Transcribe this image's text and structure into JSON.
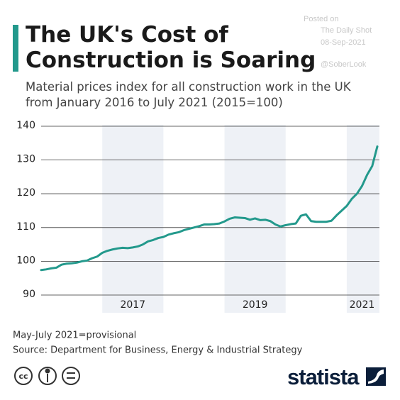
{
  "chart_data": {
    "type": "line",
    "title": "The UK's Cost of Construction is Soaring",
    "subtitle": "Material prices index for all construction work in the UK from January 2016 to July 2021 (2015=100)",
    "watermark": [
      "Posted on",
      "The Daily Shot",
      "08-Sep-2021",
      "@SoberLook"
    ],
    "categories": [
      null,
      null,
      null,
      null,
      null,
      null,
      null,
      null,
      null,
      null,
      null,
      null,
      null,
      null,
      null,
      null,
      null,
      null,
      "2017",
      null,
      null,
      null,
      null,
      null,
      null,
      null,
      null,
      null,
      null,
      null,
      null,
      null,
      null,
      null,
      null,
      null,
      null,
      null,
      null,
      null,
      null,
      null,
      "2019",
      null,
      null,
      null,
      null,
      null,
      null,
      null,
      null,
      null,
      null,
      null,
      null,
      null,
      null,
      null,
      null,
      null,
      null,
      null,
      null,
      "2021",
      null,
      null,
      null
    ],
    "series": [
      {
        "name": "Material prices index",
        "color": "#23998c",
        "values": [
          97.4,
          97.6,
          97.9,
          98.1,
          99.0,
          99.3,
          99.4,
          99.6,
          100.0,
          100.2,
          100.9,
          101.4,
          102.5,
          103.1,
          103.5,
          103.8,
          104.0,
          103.9,
          104.1,
          104.4,
          105.0,
          105.9,
          106.3,
          106.9,
          107.2,
          107.9,
          108.3,
          108.6,
          109.2,
          109.6,
          110.0,
          110.4,
          110.9,
          110.9,
          111.0,
          111.2,
          111.8,
          112.6,
          113.0,
          112.9,
          112.8,
          112.3,
          112.7,
          112.2,
          112.3,
          111.9,
          110.9,
          110.3,
          110.7,
          111.0,
          111.2,
          113.5,
          113.9,
          111.9,
          111.7,
          111.7,
          111.7,
          112.0,
          113.6,
          115.0,
          116.4,
          118.5,
          120.0,
          122.3,
          125.6,
          128.2,
          134.0
        ]
      }
    ],
    "ylim": [
      90,
      140
    ],
    "yticks": [
      90,
      100,
      110,
      120,
      130,
      140
    ],
    "grid": true,
    "notes": [
      "May-July 2021=provisional",
      "Source: Department for Business, Energy & Industrial Strategy"
    ],
    "brand": "statista"
  }
}
